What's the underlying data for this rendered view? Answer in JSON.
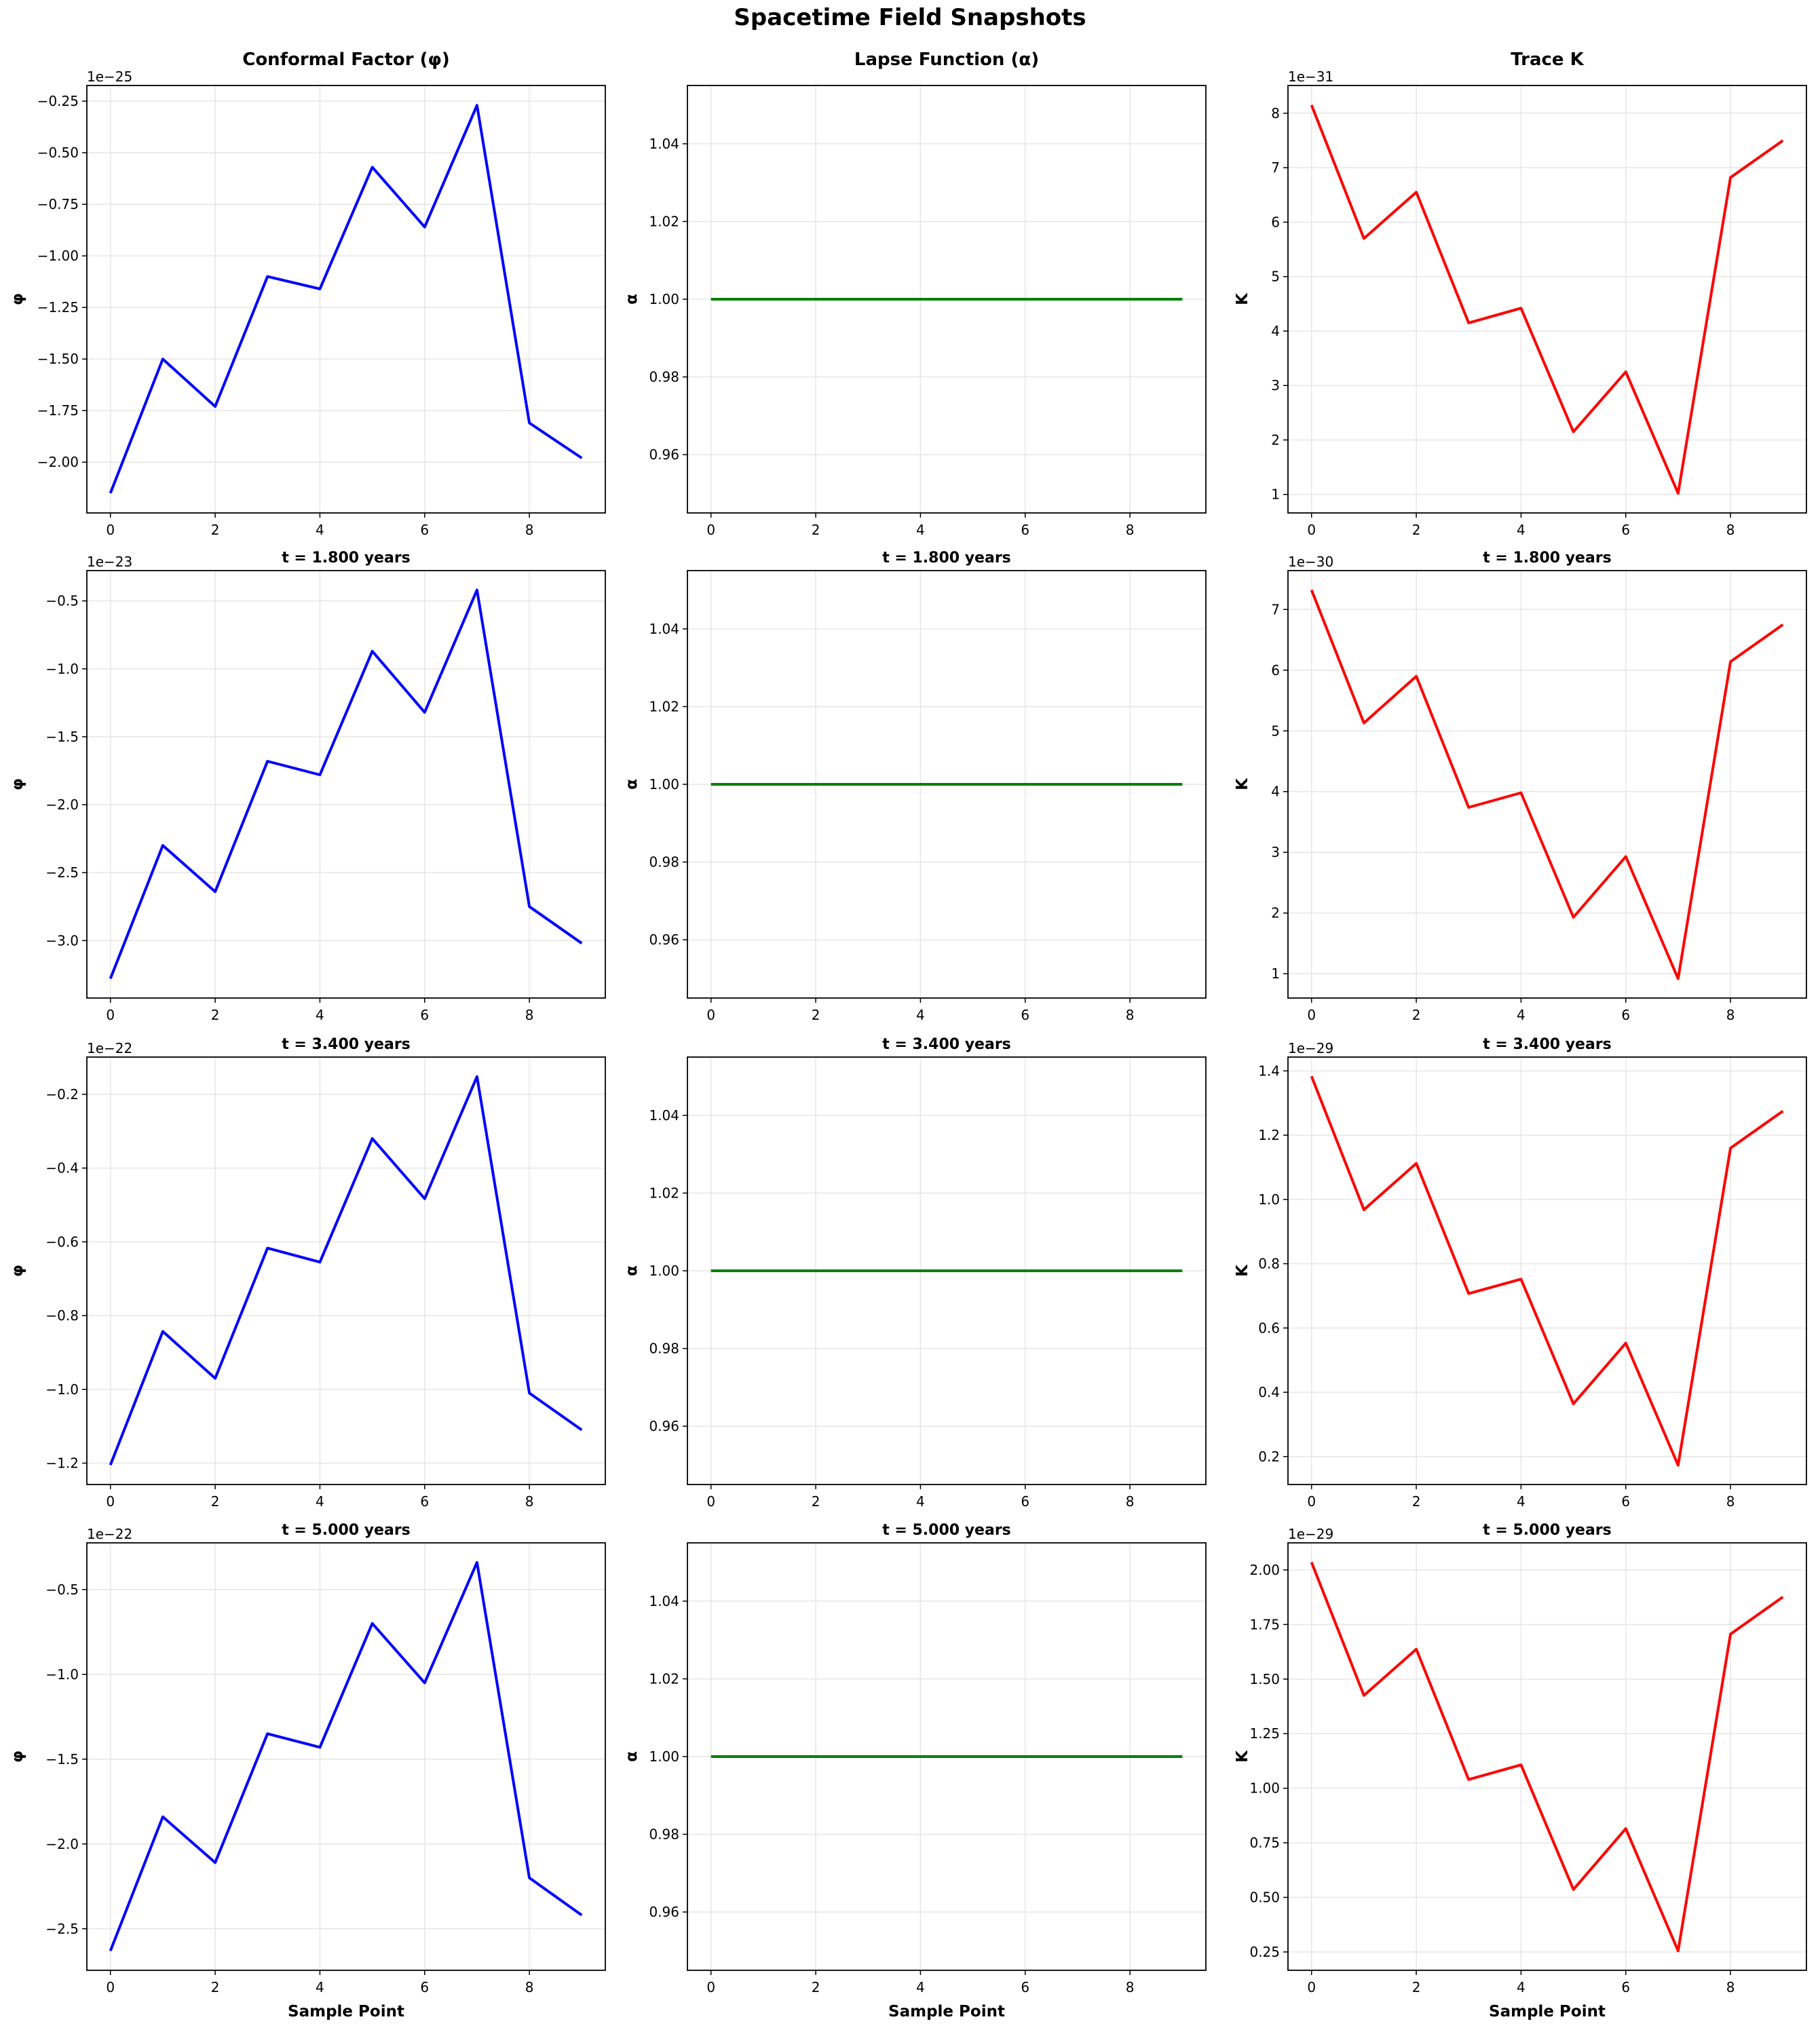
{
  "figure": {
    "title": "Spacetime Field Snapshots"
  },
  "chart_data": [
    {
      "type": "line",
      "title": "Conformal Factor (φ)",
      "xlabel": "",
      "ylabel": "φ",
      "offset_text": "1e−25",
      "color": "#0000ff",
      "x": [
        0,
        1,
        2,
        3,
        4,
        5,
        6,
        7,
        8,
        9
      ],
      "values": [
        -2.15,
        -1.5,
        -1.73,
        -1.1,
        -1.16,
        -0.57,
        -0.86,
        -0.27,
        -1.81,
        -1.98
      ],
      "xticks": [
        0,
        2,
        4,
        6,
        8
      ],
      "yticks": [
        -2.0,
        -1.75,
        -1.5,
        -1.25,
        -1.0,
        -0.75,
        -0.5,
        -0.25
      ],
      "ytick_labels": [
        "−2.00",
        "−1.75",
        "−1.50",
        "−1.25",
        "−1.00",
        "−0.75",
        "−0.50",
        "−0.25"
      ],
      "xlim": [
        -0.45,
        9.45
      ],
      "ylim": [
        -2.246,
        -0.174
      ],
      "grid": true
    },
    {
      "type": "line",
      "title": "Lapse Function (α)",
      "xlabel": "",
      "ylabel": "α",
      "offset_text": "",
      "color": "#008000",
      "x": [
        0,
        1,
        2,
        3,
        4,
        5,
        6,
        7,
        8,
        9
      ],
      "values": [
        1,
        1,
        1,
        1,
        1,
        1,
        1,
        1,
        1,
        1
      ],
      "xticks": [
        0,
        2,
        4,
        6,
        8
      ],
      "yticks": [
        0.96,
        0.98,
        1.0,
        1.02,
        1.04
      ],
      "ytick_labels": [
        "0.96",
        "0.98",
        "1.00",
        "1.02",
        "1.04"
      ],
      "xlim": [
        -0.45,
        9.45
      ],
      "ylim": [
        0.945,
        1.055
      ],
      "grid": true
    },
    {
      "type": "line",
      "title": "Trace K",
      "xlabel": "",
      "ylabel": "K",
      "offset_text": "1e−31",
      "color": "#ff0000",
      "x": [
        0,
        1,
        2,
        3,
        4,
        5,
        6,
        7,
        8,
        9
      ],
      "values": [
        8.15,
        5.7,
        6.55,
        4.15,
        4.42,
        2.15,
        3.25,
        1.02,
        6.82,
        7.5
      ],
      "xticks": [
        0,
        2,
        4,
        6,
        8
      ],
      "yticks": [
        1,
        2,
        3,
        4,
        5,
        6,
        7,
        8
      ],
      "ytick_labels": [
        "1",
        "2",
        "3",
        "4",
        "5",
        "6",
        "7",
        "8"
      ],
      "xlim": [
        -0.45,
        9.45
      ],
      "ylim": [
        0.66,
        8.51
      ],
      "grid": true
    },
    {
      "type": "line",
      "title": "t = 1.800 years",
      "xlabel": "",
      "ylabel": "φ",
      "offset_text": "1e−23",
      "color": "#0000ff",
      "x": [
        0,
        1,
        2,
        3,
        4,
        5,
        6,
        7,
        8,
        9
      ],
      "values": [
        -3.28,
        -2.3,
        -2.64,
        -1.68,
        -1.78,
        -0.87,
        -1.32,
        -0.42,
        -2.75,
        -3.02
      ],
      "xticks": [
        0,
        2,
        4,
        6,
        8
      ],
      "yticks": [
        -3.0,
        -2.5,
        -2.0,
        -1.5,
        -1.0,
        -0.5
      ],
      "ytick_labels": [
        "−3.0",
        "−2.5",
        "−2.0",
        "−1.5",
        "−1.0",
        "−0.5"
      ],
      "xlim": [
        -0.45,
        9.45
      ],
      "ylim": [
        -3.423,
        -0.277
      ],
      "grid": true
    },
    {
      "type": "line",
      "title": "t = 1.800 years",
      "xlabel": "",
      "ylabel": "α",
      "offset_text": "",
      "color": "#008000",
      "x": [
        0,
        1,
        2,
        3,
        4,
        5,
        6,
        7,
        8,
        9
      ],
      "values": [
        1,
        1,
        1,
        1,
        1,
        1,
        1,
        1,
        1,
        1
      ],
      "xticks": [
        0,
        2,
        4,
        6,
        8
      ],
      "yticks": [
        0.96,
        0.98,
        1.0,
        1.02,
        1.04
      ],
      "ytick_labels": [
        "0.96",
        "0.98",
        "1.00",
        "1.02",
        "1.04"
      ],
      "xlim": [
        -0.45,
        9.45
      ],
      "ylim": [
        0.945,
        1.055
      ],
      "grid": true
    },
    {
      "type": "line",
      "title": "t = 1.800 years",
      "xlabel": "",
      "ylabel": "K",
      "offset_text": "1e−30",
      "color": "#ff0000",
      "x": [
        0,
        1,
        2,
        3,
        4,
        5,
        6,
        7,
        8,
        9
      ],
      "values": [
        7.32,
        5.13,
        5.9,
        3.74,
        3.98,
        1.93,
        2.93,
        0.92,
        6.14,
        6.75
      ],
      "xticks": [
        0,
        2,
        4,
        6,
        8
      ],
      "yticks": [
        1,
        2,
        3,
        4,
        5,
        6,
        7
      ],
      "ytick_labels": [
        "1",
        "2",
        "3",
        "4",
        "5",
        "6",
        "7"
      ],
      "xlim": [
        -0.45,
        9.45
      ],
      "ylim": [
        0.6,
        7.64
      ],
      "grid": true
    },
    {
      "type": "line",
      "title": "t = 3.400 years",
      "xlabel": "",
      "ylabel": "φ",
      "offset_text": "1e−22",
      "color": "#0000ff",
      "x": [
        0,
        1,
        2,
        3,
        4,
        5,
        6,
        7,
        8,
        9
      ],
      "values": [
        -1.205,
        -0.843,
        -0.97,
        -0.617,
        -0.655,
        -0.32,
        -0.483,
        -0.152,
        -1.01,
        -1.11
      ],
      "xticks": [
        0,
        2,
        4,
        6,
        8
      ],
      "yticks": [
        -1.2,
        -1.0,
        -0.8,
        -0.6,
        -0.4,
        -0.2
      ],
      "ytick_labels": [
        "−1.2",
        "−1.0",
        "−0.8",
        "−0.6",
        "−0.4",
        "−0.2"
      ],
      "xlim": [
        -0.45,
        9.45
      ],
      "ylim": [
        -1.258,
        -0.099
      ],
      "grid": true
    },
    {
      "type": "line",
      "title": "t = 3.400 years",
      "xlabel": "",
      "ylabel": "α",
      "offset_text": "",
      "color": "#008000",
      "x": [
        0,
        1,
        2,
        3,
        4,
        5,
        6,
        7,
        8,
        9
      ],
      "values": [
        1,
        1,
        1,
        1,
        1,
        1,
        1,
        1,
        1,
        1
      ],
      "xticks": [
        0,
        2,
        4,
        6,
        8
      ],
      "yticks": [
        0.96,
        0.98,
        1.0,
        1.02,
        1.04
      ],
      "ytick_labels": [
        "0.96",
        "0.98",
        "1.00",
        "1.02",
        "1.04"
      ],
      "xlim": [
        -0.45,
        9.45
      ],
      "ylim": [
        0.945,
        1.055
      ],
      "grid": true
    },
    {
      "type": "line",
      "title": "t = 3.400 years",
      "xlabel": "",
      "ylabel": "K",
      "offset_text": "1e−29",
      "color": "#ff0000",
      "x": [
        0,
        1,
        2,
        3,
        4,
        5,
        6,
        7,
        8,
        9
      ],
      "values": [
        1.383,
        0.968,
        1.112,
        0.707,
        0.752,
        0.364,
        0.553,
        0.173,
        1.16,
        1.275
      ],
      "xticks": [
        0,
        2,
        4,
        6,
        8
      ],
      "yticks": [
        0.2,
        0.4,
        0.6,
        0.8,
        1.0,
        1.2,
        1.4
      ],
      "ytick_labels": [
        "0.2",
        "0.4",
        "0.6",
        "0.8",
        "1.0",
        "1.2",
        "1.4"
      ],
      "xlim": [
        -0.45,
        9.45
      ],
      "ylim": [
        0.113,
        1.443
      ],
      "grid": true
    },
    {
      "type": "line",
      "title": "t = 5.000 years",
      "xlabel": "Sample Point",
      "ylabel": "φ",
      "offset_text": "1e−22",
      "color": "#0000ff",
      "x": [
        0,
        1,
        2,
        3,
        4,
        5,
        6,
        7,
        8,
        9
      ],
      "values": [
        -2.63,
        -1.84,
        -2.11,
        -1.35,
        -1.43,
        -0.7,
        -1.05,
        -0.34,
        -2.2,
        -2.42
      ],
      "xticks": [
        0,
        2,
        4,
        6,
        8
      ],
      "yticks": [
        -2.5,
        -2.0,
        -1.5,
        -1.0,
        -0.5
      ],
      "ytick_labels": [
        "−2.5",
        "−2.0",
        "−1.5",
        "−1.0",
        "−0.5"
      ],
      "xlim": [
        -0.45,
        9.45
      ],
      "ylim": [
        -2.745,
        -0.225
      ],
      "grid": true
    },
    {
      "type": "line",
      "title": "t = 5.000 years",
      "xlabel": "Sample Point",
      "ylabel": "α",
      "offset_text": "",
      "color": "#008000",
      "x": [
        0,
        1,
        2,
        3,
        4,
        5,
        6,
        7,
        8,
        9
      ],
      "values": [
        1,
        1,
        1,
        1,
        1,
        1,
        1,
        1,
        1,
        1
      ],
      "xticks": [
        0,
        2,
        4,
        6,
        8
      ],
      "yticks": [
        0.96,
        0.98,
        1.0,
        1.02,
        1.04
      ],
      "ytick_labels": [
        "0.96",
        "0.98",
        "1.00",
        "1.02",
        "1.04"
      ],
      "xlim": [
        -0.45,
        9.45
      ],
      "ylim": [
        0.945,
        1.055
      ],
      "grid": true
    },
    {
      "type": "line",
      "title": "t = 5.000 years",
      "xlabel": "Sample Point",
      "ylabel": "K",
      "offset_text": "1e−29",
      "color": "#ff0000",
      "x": [
        0,
        1,
        2,
        3,
        4,
        5,
        6,
        7,
        8,
        9
      ],
      "values": [
        2.035,
        1.425,
        1.637,
        1.04,
        1.107,
        0.536,
        0.815,
        0.255,
        1.706,
        1.876
      ],
      "xticks": [
        0,
        2,
        4,
        6,
        8
      ],
      "yticks": [
        0.25,
        0.5,
        0.75,
        1.0,
        1.25,
        1.5,
        1.75,
        2.0
      ],
      "ytick_labels": [
        "0.25",
        "0.50",
        "0.75",
        "1.00",
        "1.25",
        "1.50",
        "1.75",
        "2.00"
      ],
      "xlim": [
        -0.45,
        9.45
      ],
      "ylim": [
        0.166,
        2.124
      ],
      "grid": true
    }
  ]
}
